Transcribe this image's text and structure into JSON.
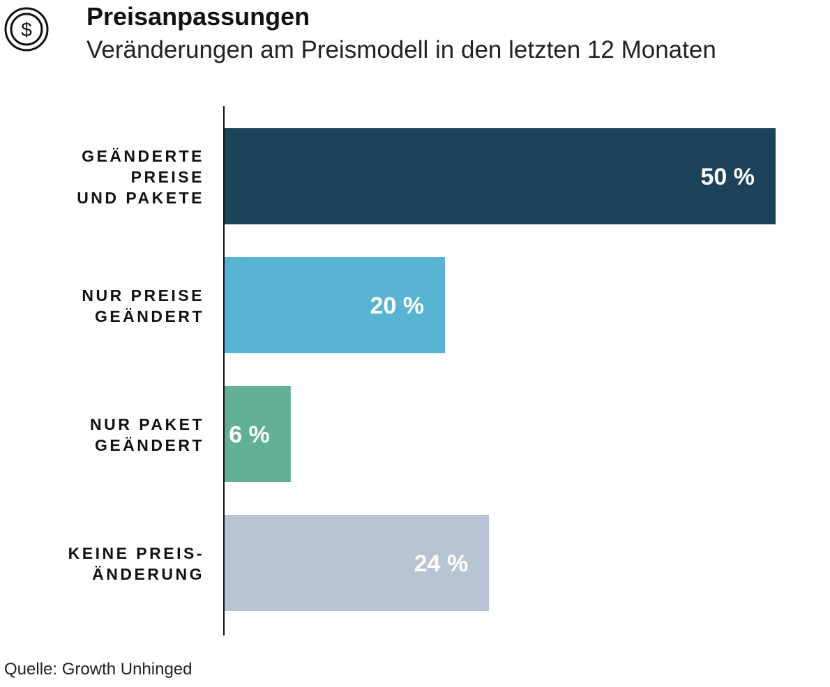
{
  "header": {
    "title": "Preisanpassungen",
    "subtitle": "Veränderungen am Preismodell in den letzten 12 Monaten",
    "icon": "dollar-circle-icon"
  },
  "chart_data": {
    "type": "bar",
    "orientation": "horizontal",
    "categories": [
      [
        "GEÄNDERTE",
        "PREISE",
        "UND PAKETE"
      ],
      [
        "NUR PREISE",
        "GEÄNDERT"
      ],
      [
        "NUR PAKET",
        "GEÄNDERT"
      ],
      [
        "KEINE PREIS-",
        "ÄNDERUNG"
      ]
    ],
    "values": [
      50,
      20,
      6,
      24
    ],
    "value_labels": [
      "50 %",
      "20 %",
      "6 %",
      "24 %"
    ],
    "colors": [
      "#1c4359",
      "#59b4d3",
      "#62b097",
      "#b8c4d2"
    ],
    "xlim": [
      0,
      50
    ],
    "grid": false,
    "legend": "none"
  },
  "footer": {
    "source": "Quelle: Growth Unhinged"
  }
}
